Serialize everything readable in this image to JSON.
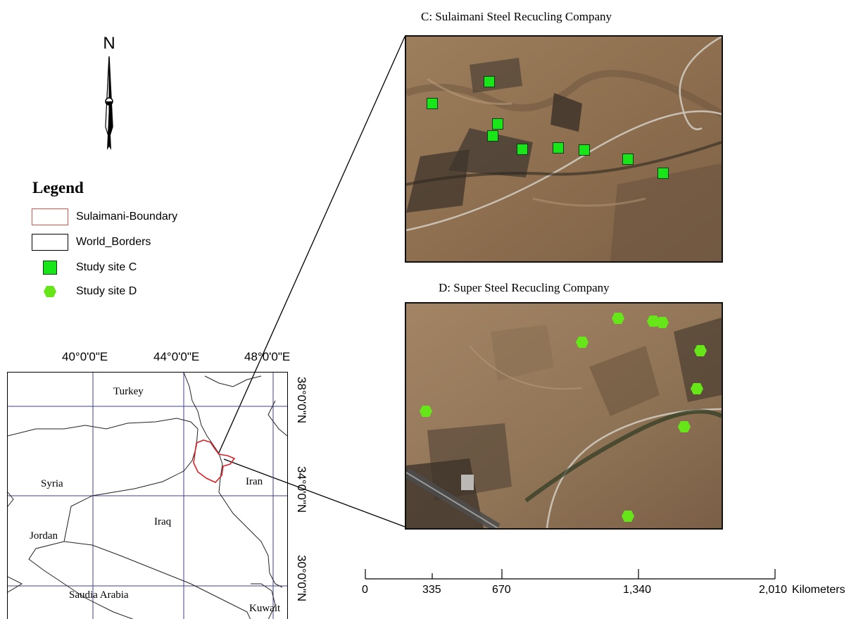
{
  "north_arrow": {
    "letter": "N"
  },
  "legend": {
    "title": "Legend",
    "items": [
      {
        "label": "Sulaimani-Boundary",
        "symbol": "red-outline-box",
        "color": "#d9534f"
      },
      {
        "label": "World_Borders",
        "symbol": "black-outline-box",
        "color": "#000000"
      },
      {
        "label": "Study site C",
        "symbol": "green-square",
        "color": "#19e619"
      },
      {
        "label": "Study site D",
        "symbol": "green-hexagon",
        "color": "#66e619"
      }
    ]
  },
  "panels": {
    "c_title": "C: Sulaimani Steel Recucling Company",
    "d_title": "D: Super Steel Recucling Company"
  },
  "inset": {
    "longitude_labels": [
      "40°0'0\"E",
      "44°0'0\"E",
      "48°0'0\"E"
    ],
    "latitude_labels": [
      "38°0'0\"N",
      "34°0'0\"N",
      "30°0'0\"N"
    ],
    "countries": [
      "Turkey",
      "Syria",
      "Iran",
      "Iraq",
      "Jordan",
      "Saudia Arabia",
      "Kuwait"
    ],
    "boundary_color": "#d9232a",
    "graticule_color": "#3f3f8f"
  },
  "scale_bar": {
    "ticks": [
      "0",
      "335",
      "670",
      "1,340",
      "2,010"
    ],
    "unit": "Kilometers"
  }
}
